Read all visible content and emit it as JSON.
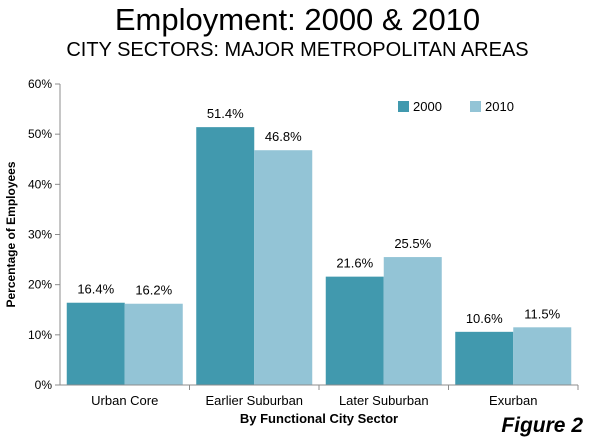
{
  "header": {
    "title": "Employment: 2000 & 2010",
    "subtitle": "CITY SECTORS: MAJOR METROPOLITAN AREAS"
  },
  "figure_label": "Figure 2",
  "colors": {
    "series_2000": "#4199AE",
    "series_2010": "#93C4D6",
    "axis": "#8C8C8C"
  },
  "chart_data": {
    "type": "bar",
    "title": "Employment: 2000 & 2010",
    "subtitle": "CITY SECTORS: MAJOR METROPOLITAN AREAS",
    "xlabel": "By Functional City Sector",
    "ylabel": "Percentage of Employees",
    "categories": [
      "Urban Core",
      "Earlier Suburban",
      "Later Suburban",
      "Exurban"
    ],
    "series": [
      {
        "name": "2000",
        "values": [
          16.4,
          51.4,
          21.6,
          10.6
        ],
        "labels": [
          "16.4%",
          "51.4%",
          "21.6%",
          "10.6%"
        ]
      },
      {
        "name": "2010",
        "values": [
          16.2,
          46.8,
          25.5,
          11.5
        ],
        "labels": [
          "16.2%",
          "46.8%",
          "25.5%",
          "11.5%"
        ]
      }
    ],
    "ylim": [
      0,
      60
    ],
    "yticks": [
      0,
      10,
      20,
      30,
      40,
      50,
      60
    ],
    "ytick_labels": [
      "0%",
      "10%",
      "20%",
      "30%",
      "40%",
      "50%",
      "60%"
    ],
    "grid": false,
    "legend": "top-right, inside plot"
  }
}
